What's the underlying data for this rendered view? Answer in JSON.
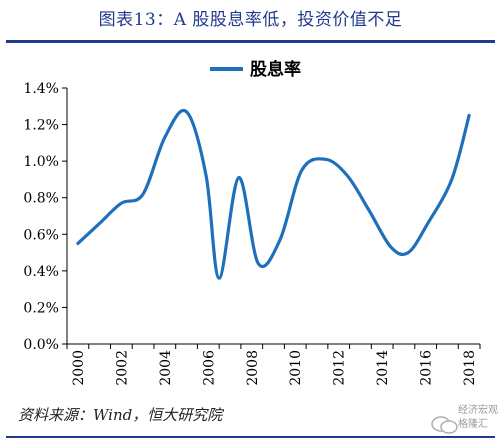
{
  "figure_title": "图表13：A 股股息率低，投资价值不足",
  "source": "资料来源：Wind，恒大研究院",
  "watermark": [
    "经济宏观",
    "格隆汇"
  ],
  "colors": {
    "title": "#1f3a8f",
    "series": "#1f6fba",
    "axis": "#000000"
  },
  "chart_data": {
    "type": "line",
    "title": "",
    "xlabel": "",
    "ylabel": "",
    "legend": {
      "position": "top-center"
    },
    "grid": false,
    "x_ticks": [
      "2000",
      "2002",
      "2004",
      "2006",
      "2008",
      "2010",
      "2012",
      "2014",
      "2016",
      "2018"
    ],
    "y_ticks": [
      "0.0%",
      "0.2%",
      "0.4%",
      "0.6%",
      "0.8%",
      "1.0%",
      "1.2%",
      "1.4%"
    ],
    "xlim": [
      2000,
      2019
    ],
    "ylim": [
      0,
      1.4
    ],
    "series": [
      {
        "name": "股息率",
        "x": [
          2000.5,
          2001.5,
          2002.5,
          2003.5,
          2004.5,
          2005.5,
          2006.4,
          2007.0,
          2007.9,
          2008.8,
          2009.8,
          2010.8,
          2011.9,
          2012.9,
          2013.9,
          2014.9,
          2015.7,
          2016.6,
          2017.7,
          2018.5
        ],
        "y": [
          0.55,
          0.66,
          0.77,
          0.82,
          1.13,
          1.27,
          0.92,
          0.36,
          0.91,
          0.44,
          0.57,
          0.95,
          1.01,
          0.92,
          0.73,
          0.53,
          0.5,
          0.66,
          0.9,
          1.25
        ]
      }
    ]
  }
}
